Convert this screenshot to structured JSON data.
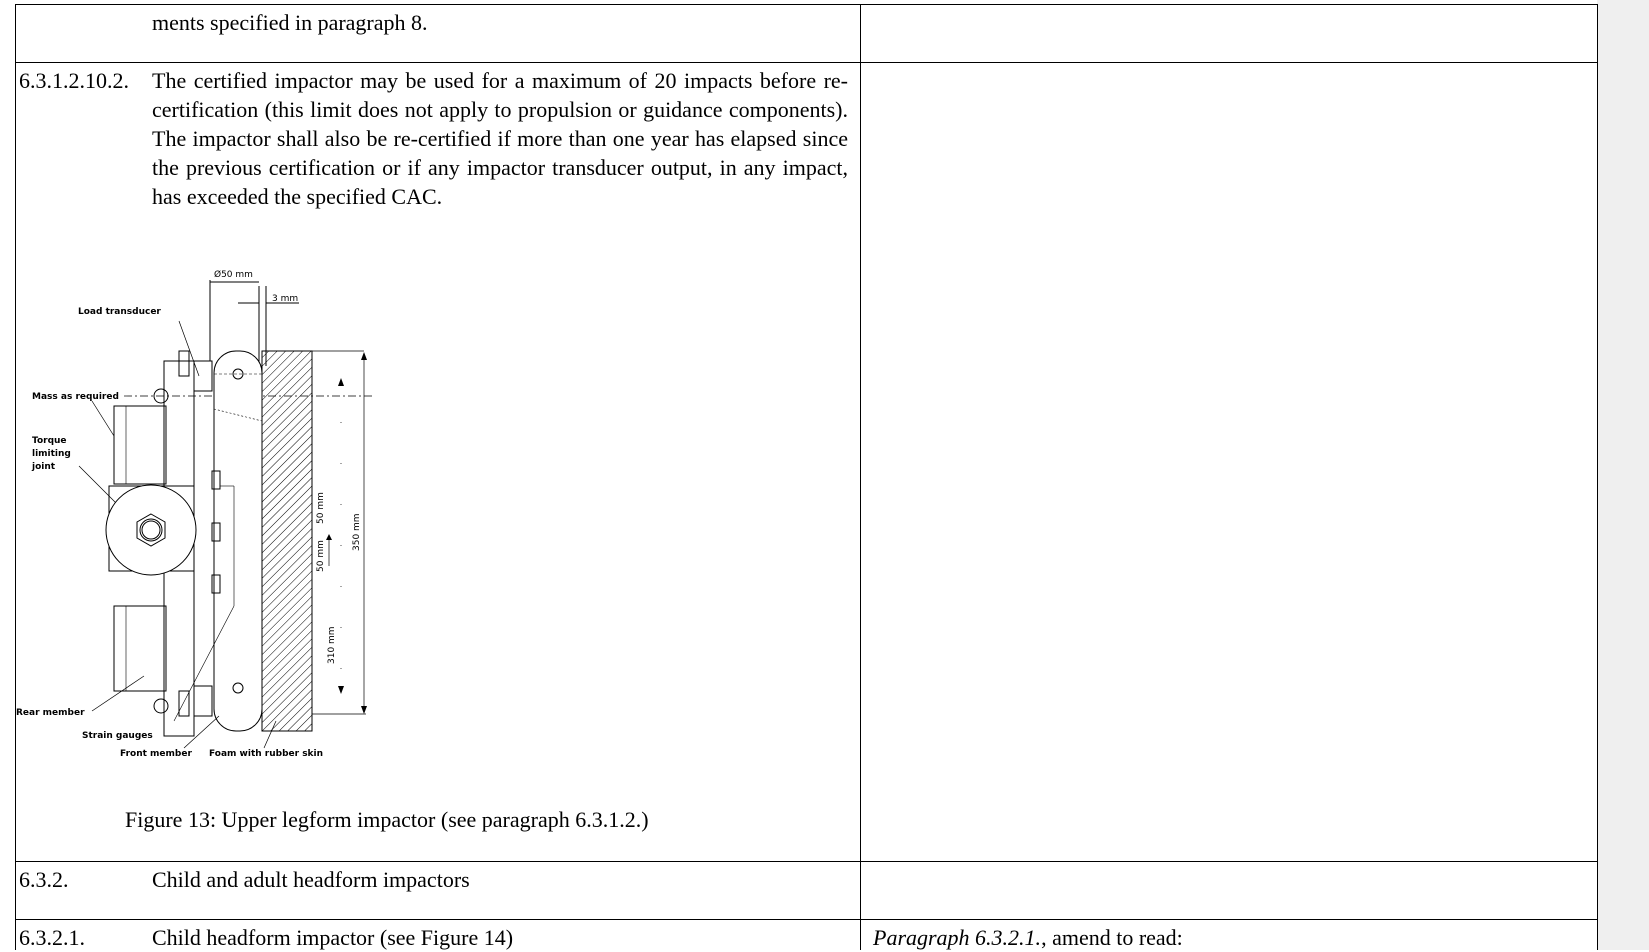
{
  "row1": {
    "text": "ments specified in paragraph 8."
  },
  "row2": {
    "number": "6.3.1.2.10.2.",
    "paragraph": "The certified impactor may be used for a maximum of 20 impacts before re-certification (this limit does not apply to propulsion or guidance components).  The impactor shall also be re-certified if more than one year has elapsed since the previous certification or if any impactor transducer output, in any impact, has exceeded the specified CAC.",
    "figure": {
      "caption": "Figure 13:  Upper legform impactor (see paragraph 6.3.1.2.)",
      "labels": {
        "diameter": "Ø50 mm",
        "thickness": "3 mm",
        "load_transducer": "Load transducer",
        "mass": "Mass as required",
        "torque1": "Torque",
        "torque2": "limiting",
        "torque3": "joint",
        "rear_member": "Rear member",
        "strain_gauges": "Strain gauges",
        "front_member": "Front member",
        "foam": "Foam with rubber skin",
        "dim_50a": "50 mm",
        "dim_50b": "50 mm",
        "dim_350": "350 mm",
        "dim_310": "310 mm"
      }
    }
  },
  "row3": {
    "number": "6.3.2.",
    "title": "Child and adult headform impactors"
  },
  "row4": {
    "number": "6.3.2.1.",
    "title": "Child headform impactor (see Figure 14)",
    "right_italic": "Paragraph 6.3.2.1.",
    "right_rest": ", amend to read:"
  }
}
